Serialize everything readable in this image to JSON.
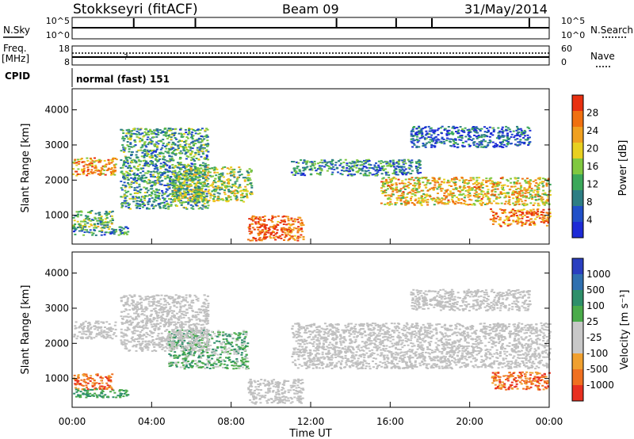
{
  "header": {
    "station": "Stokkseyri (fitACF)",
    "beam": "Beam 09",
    "date": "31/May/2014"
  },
  "strip_labels": {
    "nsky": "N.Sky",
    "nsearch": "N.Search",
    "freq": "Freq.",
    "mhz": "[MHz]",
    "nave": "Nave",
    "cpid": "CPID",
    "mode": "normal (fast) 151"
  },
  "strips": {
    "noise_ticks_left": [
      "10^5",
      "10^0"
    ],
    "noise_ticks_right": [
      "10^5",
      "10^0"
    ],
    "freq_ticks_left": [
      "18",
      "8"
    ],
    "nave_ticks_right": [
      "60",
      "0"
    ]
  },
  "colors": {
    "power_scale": [
      "#1d2bd6",
      "#2050c8",
      "#2d7e84",
      "#3ba85a",
      "#80c840",
      "#e8d020",
      "#f0a020",
      "#f07010",
      "#e83010"
    ],
    "velocity_scale": [
      "#2a3fc0",
      "#3070b0",
      "#2e8f6a",
      "#4aab4a",
      "#c8c8c8",
      "#c8c8c8",
      "#f0a030",
      "#f07020",
      "#e83020"
    ],
    "ground_scatter": "#c0c0c0"
  },
  "chart_data": [
    {
      "type": "heatmap",
      "name": "power",
      "ylabel": "Slant Range [km]",
      "yticks": [
        1000,
        2000,
        3000,
        4000
      ],
      "ylim": [
        180,
        4600
      ],
      "xlim": [
        0,
        24
      ],
      "colorbar": {
        "label": "Power [dB]",
        "ticks": [
          "4",
          "8",
          "12",
          "16",
          "20",
          "24",
          "28"
        ]
      },
      "regions": [
        {
          "x": [
            0.0,
            2.2
          ],
          "y": [
            2150,
            2650
          ],
          "level": 0.75,
          "note": ""
        },
        {
          "x": [
            0.0,
            2.0
          ],
          "y": [
            650,
            1150
          ],
          "level": 0.45
        },
        {
          "x": [
            0.0,
            2.8
          ],
          "y": [
            450,
            700
          ],
          "level": 0.35
        },
        {
          "x": [
            2.4,
            6.8
          ],
          "y": [
            1200,
            3500
          ],
          "level": 0.35
        },
        {
          "x": [
            5.0,
            9.0
          ],
          "y": [
            1400,
            2400
          ],
          "level": 0.5
        },
        {
          "x": [
            8.8,
            11.6
          ],
          "y": [
            300,
            1000
          ],
          "level": 0.9
        },
        {
          "x": [
            11.0,
            17.5
          ],
          "y": [
            2150,
            2600
          ],
          "level": 0.3
        },
        {
          "x": [
            15.5,
            24.0
          ],
          "y": [
            1300,
            2100
          ],
          "level": 0.65
        },
        {
          "x": [
            17.0,
            23.0
          ],
          "y": [
            2950,
            3550
          ],
          "level": 0.2
        },
        {
          "x": [
            21.0,
            24.0
          ],
          "y": [
            700,
            1200
          ],
          "level": 0.85
        }
      ]
    },
    {
      "type": "heatmap",
      "name": "velocity",
      "ylabel": "Slant Range [km]",
      "xlabel": "Time UT",
      "xticks": [
        "00:00",
        "04:00",
        "08:00",
        "12:00",
        "16:00",
        "20:00",
        "00:00"
      ],
      "yticks": [
        1000,
        2000,
        3000,
        4000
      ],
      "ylim": [
        180,
        4600
      ],
      "xlim": [
        0,
        24
      ],
      "colorbar": {
        "label": "Velocity [m s⁻¹]",
        "ticks": [
          "1000",
          "500",
          "100",
          "25",
          "-25",
          "-100",
          "-500",
          "-1000"
        ]
      },
      "regions": [
        {
          "x": [
            0.0,
            2.2
          ],
          "y": [
            2150,
            2650
          ],
          "kind": "ground"
        },
        {
          "x": [
            0.0,
            2.0
          ],
          "y": [
            700,
            1150
          ],
          "kind": "orange"
        },
        {
          "x": [
            0.0,
            2.8
          ],
          "y": [
            480,
            720
          ],
          "kind": "teal"
        },
        {
          "x": [
            4.8,
            8.8
          ],
          "y": [
            1300,
            2400
          ],
          "kind": "green"
        },
        {
          "x": [
            2.4,
            6.8
          ],
          "y": [
            1800,
            3400
          ],
          "kind": "ground"
        },
        {
          "x": [
            8.8,
            11.6
          ],
          "y": [
            300,
            1000
          ],
          "kind": "ground"
        },
        {
          "x": [
            11.0,
            24.0
          ],
          "y": [
            1300,
            2600
          ],
          "kind": "ground"
        },
        {
          "x": [
            17.0,
            23.0
          ],
          "y": [
            2950,
            3550
          ],
          "kind": "ground"
        },
        {
          "x": [
            21.0,
            24.0
          ],
          "y": [
            700,
            1200
          ],
          "kind": "orange"
        }
      ]
    }
  ],
  "noise_spikes_hours": [
    3.1,
    6.2,
    13.3,
    16.3,
    18.1,
    23.0
  ],
  "freq_mark_hour": 2.6
}
